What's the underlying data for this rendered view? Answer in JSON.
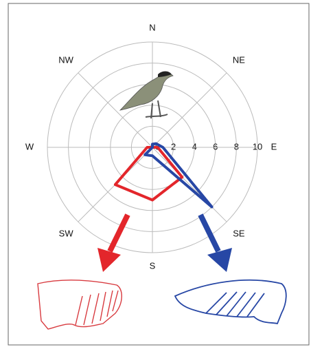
{
  "chart_data": {
    "type": "radar",
    "categories": [
      "N",
      "NE",
      "E",
      "SE",
      "S",
      "SW",
      "W",
      "NW"
    ],
    "series": [
      {
        "color": "#e3262b",
        "values": [
          0,
          0,
          0.5,
          4,
          5,
          5,
          0.5,
          0
        ]
      },
      {
        "color": "#2747a5",
        "values": [
          0.3,
          0.5,
          1,
          8,
          0.8,
          1,
          0,
          0
        ]
      }
    ],
    "rlim": [
      0,
      10
    ],
    "rticks": [
      0,
      2,
      4,
      6,
      8,
      10
    ],
    "grid": true
  }
}
